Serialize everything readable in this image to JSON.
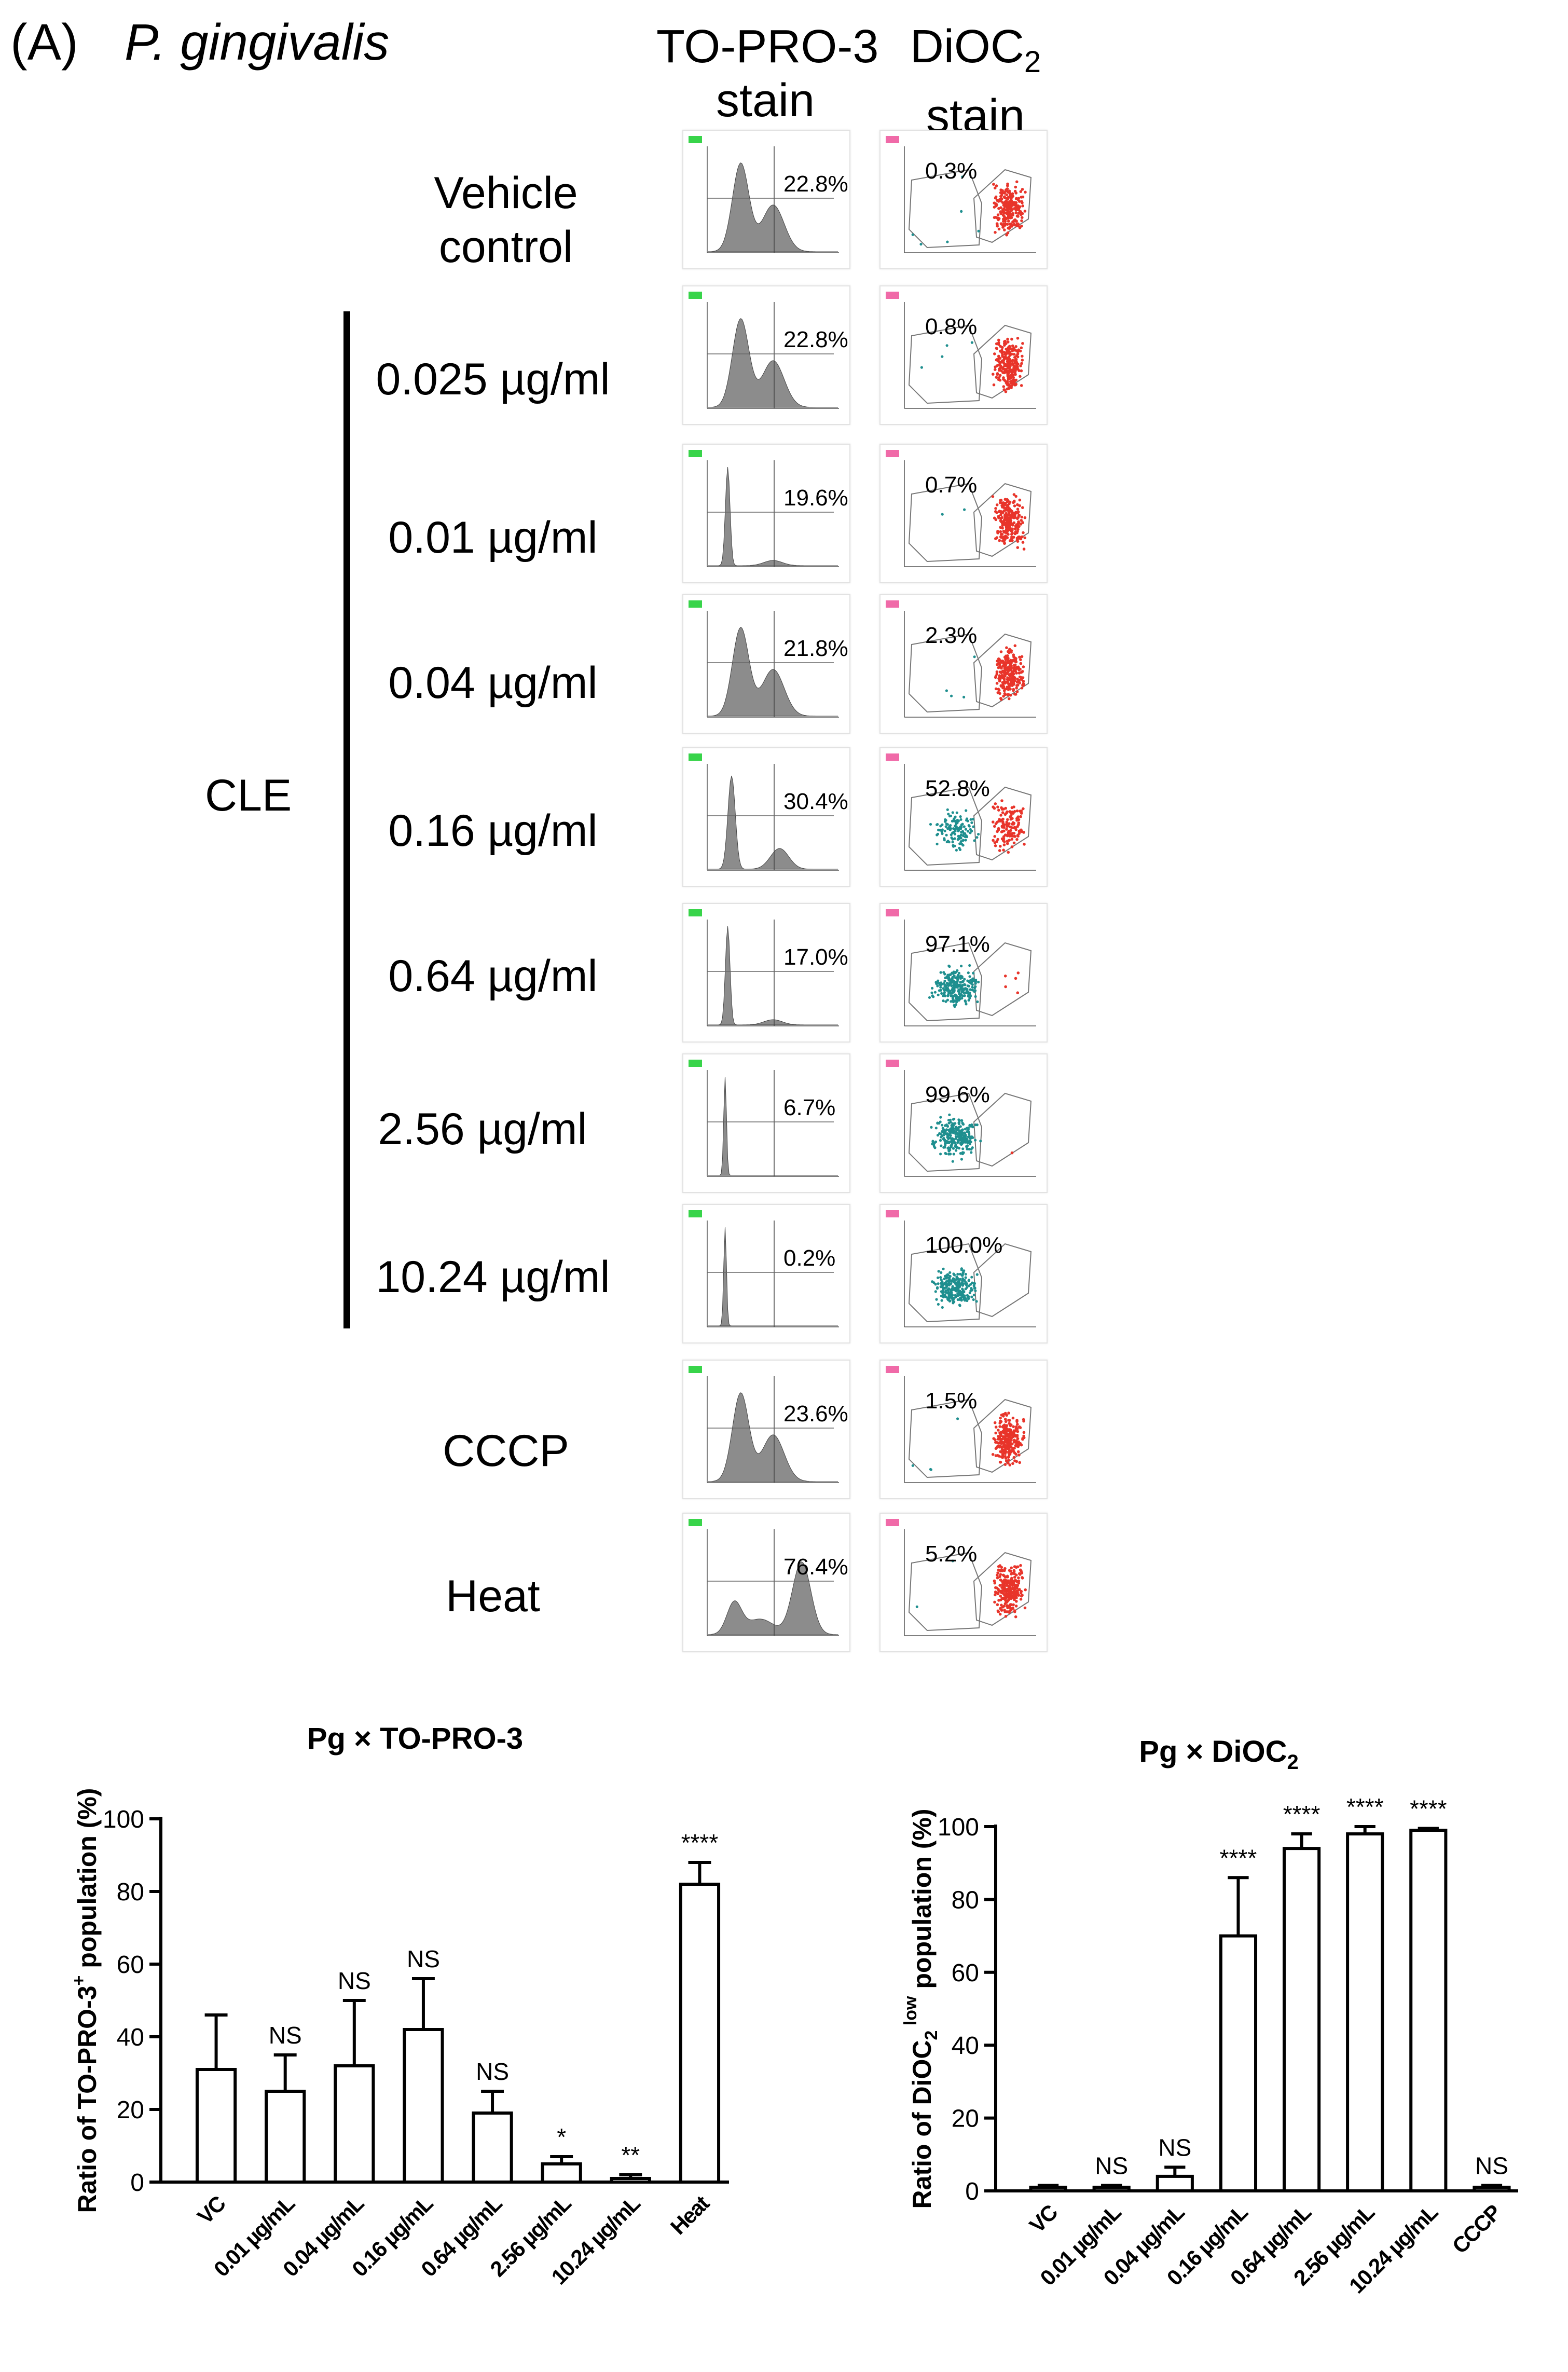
{
  "panel_label": "(A)",
  "species": "P. gingivalis",
  "columns": {
    "toproline1": "TO-PRO-3",
    "toproline2": "stain",
    "diocline1": "DiOC",
    "diocsub": "2",
    "diocline2": "stain"
  },
  "group_label": "CLE",
  "rows": [
    {
      "label1": "Vehicle",
      "label2": "control",
      "topro_pct": "22.8%",
      "dioc_pct": "0.3%",
      "topro_value": 22.8,
      "dioc_value": 0.3
    },
    {
      "label1": "0.025 µg/ml",
      "label2": "",
      "topro_pct": "22.8%",
      "dioc_pct": "0.8%",
      "topro_value": 22.8,
      "dioc_value": 0.8
    },
    {
      "label1": "0.01 µg/ml",
      "label2": "",
      "topro_pct": "19.6%",
      "dioc_pct": "0.7%",
      "topro_value": 19.6,
      "dioc_value": 0.7
    },
    {
      "label1": "0.04 µg/ml",
      "label2": "",
      "topro_pct": "21.8%",
      "dioc_pct": "2.3%",
      "topro_value": 21.8,
      "dioc_value": 2.3
    },
    {
      "label1": "0.16 µg/ml",
      "label2": "",
      "topro_pct": "30.4%",
      "dioc_pct": "52.8%",
      "topro_value": 30.4,
      "dioc_value": 52.8
    },
    {
      "label1": "0.64 µg/ml",
      "label2": "",
      "topro_pct": "17.0%",
      "dioc_pct": "97.1%",
      "topro_value": 17.0,
      "dioc_value": 97.1
    },
    {
      "label1": "2.56 µg/ml",
      "label2": "",
      "topro_pct": "6.7%",
      "dioc_pct": "99.6%",
      "topro_value": 6.7,
      "dioc_value": 99.6
    },
    {
      "label1": "10.24 µg/ml",
      "label2": "",
      "topro_pct": "0.2%",
      "dioc_pct": "100.0%",
      "topro_value": 0.2,
      "dioc_value": 100.0
    },
    {
      "label1": "CCCP",
      "label2": "",
      "topro_pct": "23.6%",
      "dioc_pct": "1.5%",
      "topro_value": 23.6,
      "dioc_value": 1.5
    },
    {
      "label1": "Heat",
      "label2": "",
      "topro_pct": "76.4%",
      "dioc_pct": "5.2%",
      "topro_value": 76.4,
      "dioc_value": 5.2
    }
  ],
  "colors": {
    "bar_fill": "#ffffff",
    "bar_stroke": "#000000",
    "histogram": "#8c8c8c",
    "dioc_high": "#e8342a",
    "dioc_low": "#1f8f8f",
    "topro_tag": "#38d44a",
    "dioc_tag": "#f06aa8"
  },
  "chart_data": [
    {
      "type": "bar",
      "title": "Pg × TO-PRO-3",
      "ylabel": "Ratio of TO-PRO-3+ population (%)",
      "ylabel_main": "Ratio of TO-PRO-3",
      "ylabel_sup": "+",
      "ylabel_end": " population (%)",
      "xlabel": "",
      "ylim": [
        0,
        100
      ],
      "yticks": [
        0,
        20,
        40,
        60,
        80,
        100
      ],
      "categories": [
        "VC",
        "0.01 µg/mL",
        "0.04 µg/mL",
        "0.16 µg/mL",
        "0.64 µg/mL",
        "2.56 µg/mL",
        "10.24 µg/mL",
        "Heat"
      ],
      "values": [
        31,
        25,
        32,
        42,
        19,
        5,
        1,
        82
      ],
      "errors": [
        15,
        10,
        18,
        14,
        6,
        2,
        1,
        6
      ],
      "annotations": [
        "",
        "NS",
        "NS",
        "NS",
        "NS",
        "*",
        "**",
        "****"
      ]
    },
    {
      "type": "bar",
      "title": "Pg × DiOC2",
      "title_main": "Pg × DiOC",
      "title_sub": "2",
      "ylabel": "Ratio of DiOC2 low population (%)",
      "ylabel_main": "Ratio of DiOC",
      "ylabel_sub": "2",
      "ylabel_sup": "low",
      "ylabel_end": " population (%)",
      "xlabel": "",
      "ylim": [
        0,
        100
      ],
      "yticks": [
        0,
        20,
        40,
        60,
        80,
        100
      ],
      "categories": [
        "VC",
        "0.01 µg/mL",
        "0.04 µg/mL",
        "0.16 µg/mL",
        "0.64 µg/mL",
        "2.56 µg/mL",
        "10.24 µg/mL",
        "CCCP"
      ],
      "values": [
        1,
        1,
        4,
        70,
        94,
        98,
        99,
        1
      ],
      "errors": [
        0.5,
        0.5,
        2.5,
        16,
        4,
        2,
        0.5,
        0.5
      ],
      "annotations": [
        "",
        "NS",
        "NS",
        "****",
        "****",
        "****",
        "****",
        "NS"
      ]
    }
  ]
}
